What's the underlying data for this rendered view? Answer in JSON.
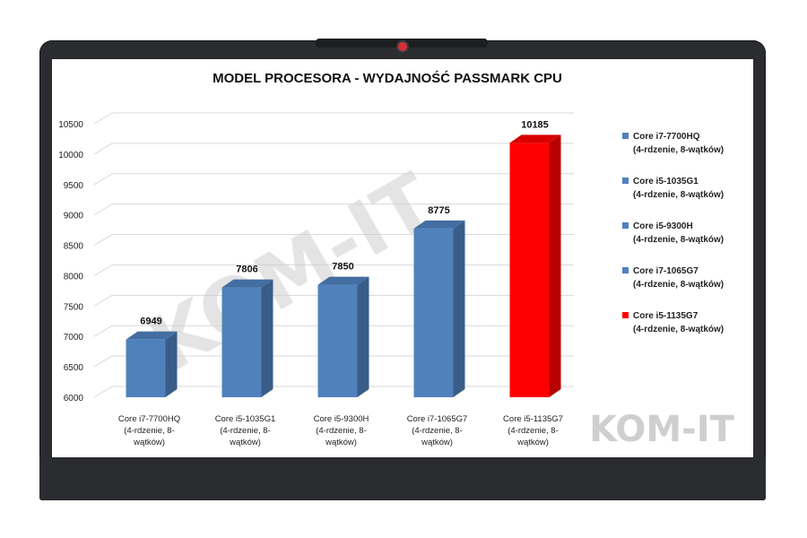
{
  "watermark": "KOM-IT",
  "corner_logo": "KOM-IT",
  "chart_data": {
    "type": "bar",
    "title": "MODEL PROCESORA - WYDAJNOŚĆ PASSMARK CPU",
    "xlabel": "",
    "ylabel": "",
    "ylim": [
      6000,
      10500
    ],
    "yticks": [
      6000,
      6500,
      7000,
      7500,
      8000,
      8500,
      9000,
      9500,
      10000,
      10500
    ],
    "categories": [
      [
        "Core i7-7700HQ",
        "(4-rdzenie, 8-",
        "wątków)"
      ],
      [
        "Core i5-1035G1",
        "(4-rdzenie, 8-",
        "wątków)"
      ],
      [
        "Core i5-9300H",
        "(4-rdzenie, 8-",
        "wątków)"
      ],
      [
        "Core i7-1065G7",
        "(4-rdzenie, 8-",
        "wątków)"
      ],
      [
        "Core i5-1135G7",
        "(4-rdzenie, 8-",
        "wątków)"
      ]
    ],
    "values": [
      6949,
      7806,
      7850,
      8775,
      10185
    ],
    "bar_colors": [
      "#4f81bd",
      "#4f81bd",
      "#4f81bd",
      "#4f81bd",
      "#ff0000"
    ],
    "legend_position": "right",
    "legend": [
      [
        "Core i7-7700HQ",
        "(4-rdzenie, 8-wątków)"
      ],
      [
        "Core i5-1035G1",
        "(4-rdzenie, 8-wątków)"
      ],
      [
        "Core i5-9300H",
        "(4-rdzenie, 8-wątków)"
      ],
      [
        "Core i7-1065G7",
        "(4-rdzenie, 8-wątków)"
      ],
      [
        "Core i5-1135G7",
        "(4-rdzenie, 8-wątków)"
      ]
    ],
    "grid": true
  }
}
